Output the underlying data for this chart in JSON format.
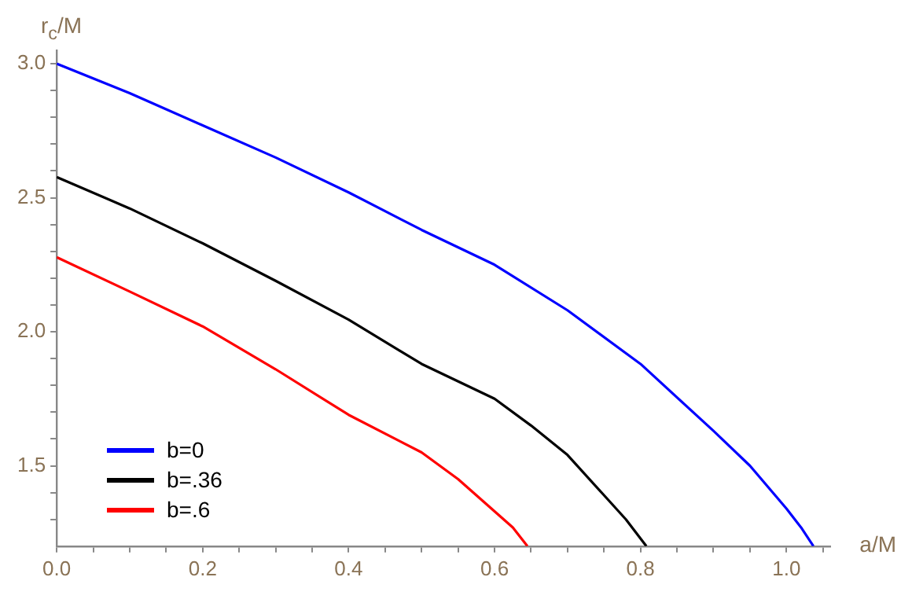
{
  "chart_data": {
    "type": "line",
    "xlabel": "a/M",
    "ylabel": "r$_{c}$/M",
    "xlim": [
      0,
      1.06
    ],
    "ylim": [
      1.2,
      3.05
    ],
    "xticks": [
      {
        "value": 0,
        "label": "0.0"
      },
      {
        "value": 0.05,
        "label": null
      },
      {
        "value": 0.1,
        "label": null
      },
      {
        "value": 0.15,
        "label": null
      },
      {
        "value": 0.2,
        "label": "0.2"
      },
      {
        "value": 0.25,
        "label": null
      },
      {
        "value": 0.3,
        "label": null
      },
      {
        "value": 0.35,
        "label": null
      },
      {
        "value": 0.4,
        "label": "0.4"
      },
      {
        "value": 0.45,
        "label": null
      },
      {
        "value": 0.5,
        "label": null
      },
      {
        "value": 0.55,
        "label": null
      },
      {
        "value": 0.6,
        "label": "0.6"
      },
      {
        "value": 0.65,
        "label": null
      },
      {
        "value": 0.7,
        "label": null
      },
      {
        "value": 0.75,
        "label": null
      },
      {
        "value": 0.8,
        "label": "0.8"
      },
      {
        "value": 0.85,
        "label": null
      },
      {
        "value": 0.9,
        "label": null
      },
      {
        "value": 0.95,
        "label": null
      },
      {
        "value": 1.0,
        "label": "1.0"
      },
      {
        "value": 1.05,
        "label": null
      }
    ],
    "yticks": [
      {
        "value": 1.3,
        "label": null
      },
      {
        "value": 1.4,
        "label": null
      },
      {
        "value": 1.5,
        "label": "1.5"
      },
      {
        "value": 1.6,
        "label": null
      },
      {
        "value": 1.7,
        "label": null
      },
      {
        "value": 1.8,
        "label": null
      },
      {
        "value": 1.9,
        "label": null
      },
      {
        "value": 2.0,
        "label": "2.0"
      },
      {
        "value": 2.1,
        "label": null
      },
      {
        "value": 2.2,
        "label": null
      },
      {
        "value": 2.3,
        "label": null
      },
      {
        "value": 2.4,
        "label": null
      },
      {
        "value": 2.5,
        "label": "2.5"
      },
      {
        "value": 2.6,
        "label": null
      },
      {
        "value": 2.7,
        "label": null
      },
      {
        "value": 2.8,
        "label": null
      },
      {
        "value": 2.9,
        "label": null
      },
      {
        "value": 3.0,
        "label": "3.0"
      }
    ],
    "grid": false,
    "legend": "bottom left",
    "marker": "none",
    "line_style": "solid",
    "series": [
      {
        "name": "b=0",
        "color": "#0000ff",
        "x": [
          0,
          0.1,
          0.2,
          0.3,
          0.4,
          0.5,
          0.6,
          0.7,
          0.8,
          0.9,
          0.95,
          1.0,
          1.02,
          1.037
        ],
        "values": [
          3.0,
          2.89,
          2.77,
          2.65,
          2.52,
          2.38,
          2.25,
          2.08,
          1.88,
          1.63,
          1.5,
          1.34,
          1.27,
          1.2
        ]
      },
      {
        "name": "b=.36",
        "color": "#000000",
        "x": [
          0,
          0.1,
          0.2,
          0.3,
          0.4,
          0.5,
          0.6,
          0.65,
          0.7,
          0.75,
          0.78,
          0.808
        ],
        "values": [
          2.577,
          2.46,
          2.33,
          2.19,
          2.045,
          1.88,
          1.75,
          1.65,
          1.54,
          1.39,
          1.3,
          1.2
        ]
      },
      {
        "name": "b=.6",
        "color": "#ff0000",
        "x": [
          0,
          0.1,
          0.2,
          0.3,
          0.4,
          0.5,
          0.55,
          0.6,
          0.625,
          0.645
        ],
        "values": [
          2.278,
          2.15,
          2.02,
          1.86,
          1.69,
          1.55,
          1.45,
          1.33,
          1.27,
          1.2
        ]
      }
    ]
  }
}
